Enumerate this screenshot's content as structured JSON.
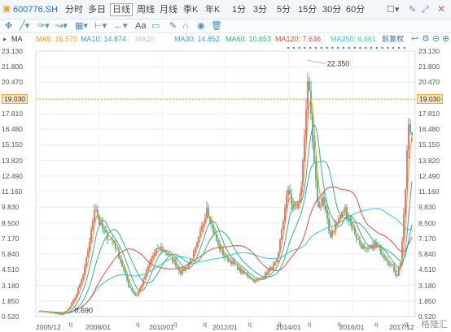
{
  "toolbar": {
    "code": "600776.SH",
    "periods": [
      "分时",
      "多日",
      "日线",
      "周线",
      "月线",
      "季K",
      "年K",
      "1分",
      "3分",
      "5分",
      "15分",
      "30分",
      "60分"
    ],
    "active_period": "日线"
  },
  "indicator_bar": {
    "tools": [
      "move-tool-icon",
      "line-tool-icon",
      "pen-tool-icon",
      "wave-tool-icon",
      "grid-tool-icon",
      "measure-tool-icon",
      "arrow-tool-icon",
      "text-tool-icon",
      "comment-tool-icon",
      "edit-tool-icon",
      "magnet-tool-icon",
      "eye-tool-icon",
      "delete-tool-icon"
    ],
    "text_tool_label": "Aa"
  },
  "ma_bar": {
    "label": "MA",
    "items": [
      {
        "label": "MA5: 16.570",
        "color": "#f39c12"
      },
      {
        "label": "MA10: 14.874",
        "color": "#3aa0d8"
      },
      {
        "label": "MA20",
        "color": "#d9b5ff"
      },
      {
        "label": "MA30: 14.852",
        "color": "#3aa0d8"
      },
      {
        "label": "MA60: 10.653",
        "color": "#2eb872"
      },
      {
        "label": "MA120: 7.636",
        "color": "#e74c3c"
      },
      {
        "label": "MA250: 6.661",
        "color": "#30c7d8"
      }
    ],
    "adjust_label": "前复权"
  },
  "axis": {
    "ticks": [
      "23.130",
      "21.800",
      "20.470",
      "19.130",
      "17.810",
      "16.480",
      "15.150",
      "13.820",
      "12.490",
      "11.160",
      "9.830",
      "8.500",
      "7.170",
      "5.840",
      "4.510",
      "3.180",
      "1.850",
      "0.520"
    ],
    "current_price": "19.030",
    "max_label": "22.350",
    "min_label": "0.690"
  },
  "chart_data": {
    "type": "candlestick",
    "ylim": [
      0.52,
      23.13
    ],
    "x_labels": [
      "2005/12",
      "2008/01",
      "2010/01",
      "2012/01",
      "2014/01",
      "2016/01",
      "2017/12"
    ],
    "ma_legend": [
      "MA5",
      "MA10",
      "MA20",
      "MA30",
      "MA60",
      "MA120",
      "MA250"
    ],
    "price_path": [
      [
        0,
        1.0
      ],
      [
        2,
        0.9
      ],
      [
        4,
        0.8
      ],
      [
        6,
        0.69
      ],
      [
        8,
        1.2
      ],
      [
        10,
        2.4
      ],
      [
        12,
        4.2
      ],
      [
        14,
        7.8
      ],
      [
        15,
        10.2
      ],
      [
        16,
        8.6
      ],
      [
        18,
        7.4
      ],
      [
        20,
        6.9
      ],
      [
        22,
        5.1
      ],
      [
        24,
        3.2
      ],
      [
        26,
        2.2
      ],
      [
        28,
        3.6
      ],
      [
        30,
        5.4
      ],
      [
        32,
        6.4
      ],
      [
        34,
        6.0
      ],
      [
        36,
        5.3
      ],
      [
        38,
        4.3
      ],
      [
        40,
        4.9
      ],
      [
        42,
        6.3
      ],
      [
        44,
        8.4
      ],
      [
        45,
        10.0
      ],
      [
        46,
        8.6
      ],
      [
        48,
        6.6
      ],
      [
        50,
        5.5
      ],
      [
        52,
        5.1
      ],
      [
        54,
        4.4
      ],
      [
        56,
        4.0
      ],
      [
        58,
        3.5
      ],
      [
        60,
        3.9
      ],
      [
        62,
        4.6
      ],
      [
        64,
        5.3
      ],
      [
        65,
        7.9
      ],
      [
        66,
        9.7
      ],
      [
        67,
        11.8
      ],
      [
        68,
        9.4
      ],
      [
        70,
        10.4
      ],
      [
        71,
        14.7
      ],
      [
        72,
        21.1
      ],
      [
        73,
        16.8
      ],
      [
        74,
        12.4
      ],
      [
        75,
        9.6
      ],
      [
        76,
        10.7
      ],
      [
        78,
        7.4
      ],
      [
        80,
        8.6
      ],
      [
        82,
        9.7
      ],
      [
        84,
        8.2
      ],
      [
        86,
        6.7
      ],
      [
        88,
        6.0
      ],
      [
        90,
        6.7
      ],
      [
        92,
        5.9
      ],
      [
        94,
        5.1
      ],
      [
        95,
        4.6
      ],
      [
        96,
        4.0
      ],
      [
        97,
        5.3
      ],
      [
        98,
        9.7
      ],
      [
        99,
        16.6
      ],
      [
        100,
        16.1
      ]
    ]
  },
  "watermark": "格隆汇"
}
